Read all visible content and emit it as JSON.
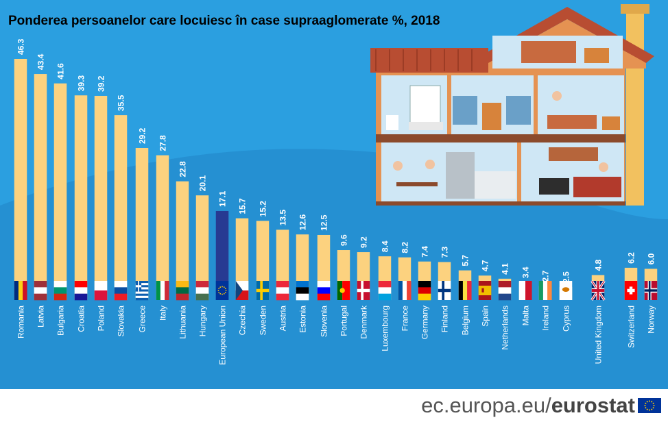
{
  "title": "Ponderea persoanelor care locuiesc în case supraaglomerate %, 2018",
  "footer": {
    "domain": "ec.europa.eu/",
    "brand": "eurostat"
  },
  "colors": {
    "background": "#2b9fe0",
    "bar": "#fcd27f",
    "eu_bar": "#273a92",
    "footer_text": "#555555"
  },
  "chart_data": {
    "type": "bar",
    "title": "Ponderea persoanelor care locuiesc în case supraaglomerate %, 2018",
    "categories": [
      "Romania",
      "Latvia",
      "Bulgaria",
      "Croatia",
      "Poland",
      "Slovakia",
      "Greece",
      "Italy",
      "Lithuania",
      "Hungary",
      "European Union",
      "Czechia",
      "Sweden",
      "Austria",
      "Estonia",
      "Slovenia",
      "Portugal",
      "Denmark",
      "Luxembourg",
      "France",
      "Germany",
      "Finland",
      "Belgium",
      "Spain",
      "Netherlands",
      "Malta",
      "Ireland",
      "Cyprus",
      "United Kingdom",
      "Switzerland",
      "Norway"
    ],
    "values": [
      46.3,
      43.4,
      41.6,
      39.3,
      39.2,
      35.5,
      29.2,
      27.8,
      22.8,
      20.1,
      17.1,
      15.7,
      15.2,
      13.5,
      12.6,
      12.5,
      9.6,
      9.2,
      8.4,
      8.2,
      7.4,
      7.3,
      5.7,
      4.7,
      4.1,
      3.4,
      2.7,
      2.5,
      4.8,
      6.2,
      6.0
    ],
    "value_labels": [
      "46.3",
      "43.4",
      "41.6",
      "39.3",
      "39.2",
      "35.5",
      "29.2",
      "27.8",
      "22.8",
      "20.1",
      "17.1",
      "15.7",
      "15.2",
      "13.5",
      "12.6",
      "12.5",
      "9.6",
      "9.2",
      "8.4",
      "8.2",
      "7.4",
      "7.3",
      "5.7",
      "4.7",
      "4.1",
      "3.4",
      "2.7",
      "2.5",
      "4.8",
      "6.2",
      "6.0"
    ],
    "highlight": "European Union",
    "ylim": [
      0,
      46.3
    ],
    "xlabel": "",
    "ylabel": "",
    "grid": false,
    "legend": "none"
  },
  "flags": [
    {
      "kind": "v3",
      "colors": [
        "#002b7f",
        "#fcd116",
        "#ce1126"
      ]
    },
    {
      "kind": "h3",
      "colors": [
        "#9e3039",
        "#ffffff",
        "#9e3039"
      ]
    },
    {
      "kind": "h3",
      "colors": [
        "#ffffff",
        "#00966e",
        "#d62612"
      ]
    },
    {
      "kind": "h3",
      "colors": [
        "#ff0000",
        "#ffffff",
        "#171796"
      ]
    },
    {
      "kind": "h2",
      "colors": [
        "#ffffff",
        "#dc143c"
      ]
    },
    {
      "kind": "h3",
      "colors": [
        "#ffffff",
        "#0b4ea2",
        "#ee1c25"
      ]
    },
    {
      "kind": "stripes",
      "colors": [
        "#0d5eaf",
        "#ffffff"
      ]
    },
    {
      "kind": "v3",
      "colors": [
        "#009246",
        "#ffffff",
        "#ce2b37"
      ]
    },
    {
      "kind": "h3",
      "colors": [
        "#fdb913",
        "#006a44",
        "#c1272d"
      ]
    },
    {
      "kind": "h3",
      "colors": [
        "#ce2939",
        "#ffffff",
        "#477050"
      ]
    },
    {
      "kind": "eu",
      "colors": [
        "#003399",
        "#ffcc00"
      ]
    },
    {
      "kind": "cz",
      "colors": [
        "#ffffff",
        "#d7141a",
        "#11457e"
      ]
    },
    {
      "kind": "nordic",
      "colors": [
        "#006aa7",
        "#fecc00"
      ]
    },
    {
      "kind": "h3",
      "colors": [
        "#ed2939",
        "#ffffff",
        "#ed2939"
      ]
    },
    {
      "kind": "h3",
      "colors": [
        "#0072ce",
        "#000000",
        "#ffffff"
      ]
    },
    {
      "kind": "h3",
      "colors": [
        "#ffffff",
        "#0000ff",
        "#ff0000"
      ]
    },
    {
      "kind": "pt",
      "colors": [
        "#006600",
        "#ff0000",
        "#ffcc00"
      ]
    },
    {
      "kind": "nordic",
      "colors": [
        "#c8102e",
        "#ffffff"
      ]
    },
    {
      "kind": "h3",
      "colors": [
        "#ed2939",
        "#ffffff",
        "#00a1de"
      ]
    },
    {
      "kind": "v3",
      "colors": [
        "#0055a4",
        "#ffffff",
        "#ef4135"
      ]
    },
    {
      "kind": "h3",
      "colors": [
        "#000000",
        "#dd0000",
        "#ffce00"
      ]
    },
    {
      "kind": "nordic",
      "colors": [
        "#ffffff",
        "#003580"
      ]
    },
    {
      "kind": "v3",
      "colors": [
        "#000000",
        "#fae042",
        "#ed2939"
      ]
    },
    {
      "kind": "es",
      "colors": [
        "#aa151b",
        "#f1bf00"
      ]
    },
    {
      "kind": "h3",
      "colors": [
        "#ae1c28",
        "#ffffff",
        "#21468b"
      ]
    },
    {
      "kind": "v2",
      "colors": [
        "#ffffff",
        "#cf142b"
      ]
    },
    {
      "kind": "v3",
      "colors": [
        "#169b62",
        "#ffffff",
        "#ff883e"
      ]
    },
    {
      "kind": "cy",
      "colors": [
        "#ffffff",
        "#d57800"
      ]
    },
    {
      "kind": "uk",
      "colors": [
        "#012169",
        "#ffffff",
        "#c8102e"
      ]
    },
    {
      "kind": "ch",
      "colors": [
        "#ff0000",
        "#ffffff"
      ]
    },
    {
      "kind": "nordic2",
      "colors": [
        "#ba0c2f",
        "#ffffff",
        "#00205b"
      ]
    }
  ]
}
